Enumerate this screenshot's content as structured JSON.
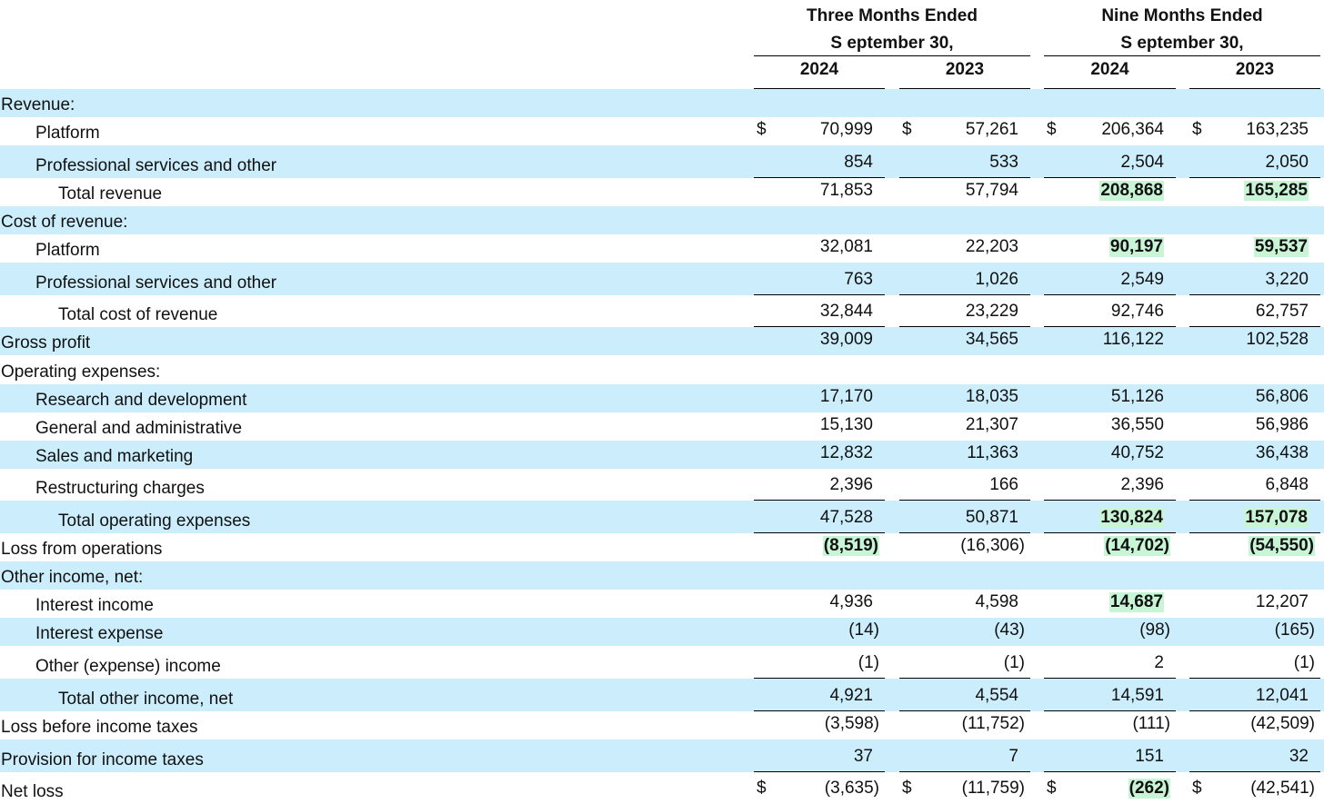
{
  "header": {
    "groups": [
      {
        "title": "Three Months Ended",
        "subtitle": "S eptember 30,"
      },
      {
        "title": "Nine Months Ended",
        "subtitle": "S eptember 30,"
      }
    ],
    "years": [
      "2024",
      "2023",
      "2024",
      "2023"
    ]
  },
  "currency_symbol": "$",
  "rows": [
    {
      "label": "Revenue:",
      "indent": 0,
      "shade": true,
      "values": []
    },
    {
      "label": "Platform",
      "indent": 1,
      "shade": false,
      "dollar": true,
      "values": [
        "70,999",
        "57,261",
        "206,364",
        "163,235"
      ]
    },
    {
      "label": "Professional services and other",
      "indent": 1,
      "shade": true,
      "values": [
        "854",
        "533",
        "2,504",
        "2,050"
      ],
      "rule_below": true
    },
    {
      "label": "Total revenue",
      "indent": 2,
      "shade": false,
      "values": [
        "71,853",
        "57,794",
        "208,868",
        "165,285"
      ],
      "highlight": [
        2,
        3
      ]
    },
    {
      "label": "Cost of revenue:",
      "indent": 0,
      "shade": true,
      "values": []
    },
    {
      "label": "Platform",
      "indent": 1,
      "shade": false,
      "values": [
        "32,081",
        "22,203",
        "90,197",
        "59,537"
      ],
      "highlight": [
        2,
        3
      ]
    },
    {
      "label": "Professional services and other",
      "indent": 1,
      "shade": true,
      "values": [
        "763",
        "1,026",
        "2,549",
        "3,220"
      ],
      "rule_below": true
    },
    {
      "label": "Total cost of revenue",
      "indent": 2,
      "shade": false,
      "values": [
        "32,844",
        "23,229",
        "92,746",
        "62,757"
      ],
      "rule_below": true
    },
    {
      "label": "Gross profit",
      "indent": 0,
      "shade": true,
      "values": [
        "39,009",
        "34,565",
        "116,122",
        "102,528"
      ]
    },
    {
      "label": "Operating expenses:",
      "indent": 0,
      "shade": false,
      "values": []
    },
    {
      "label": "Research and development",
      "indent": 1,
      "shade": true,
      "values": [
        "17,170",
        "18,035",
        "51,126",
        "56,806"
      ]
    },
    {
      "label": "General and administrative",
      "indent": 1,
      "shade": false,
      "values": [
        "15,130",
        "21,307",
        "36,550",
        "56,986"
      ]
    },
    {
      "label": "Sales and marketing",
      "indent": 1,
      "shade": true,
      "values": [
        "12,832",
        "11,363",
        "40,752",
        "36,438"
      ]
    },
    {
      "label": "Restructuring charges",
      "indent": 1,
      "shade": false,
      "values": [
        "2,396",
        "166",
        "2,396",
        "6,848"
      ],
      "rule_below": true
    },
    {
      "label": "Total operating expenses",
      "indent": 2,
      "shade": true,
      "values": [
        "47,528",
        "50,871",
        "130,824",
        "157,078"
      ],
      "highlight": [
        2,
        3
      ],
      "rule_below": true
    },
    {
      "label": "Loss from operations",
      "indent": 0,
      "shade": false,
      "values": [
        "(8,519)",
        "(16,306)",
        "(14,702)",
        "(54,550)"
      ],
      "highlight": [
        0,
        2,
        3
      ]
    },
    {
      "label": "Other income, net:",
      "indent": 0,
      "shade": true,
      "values": []
    },
    {
      "label": "Interest income",
      "indent": 1,
      "shade": false,
      "values": [
        "4,936",
        "4,598",
        "14,687",
        "12,207"
      ],
      "highlight": [
        2
      ]
    },
    {
      "label": "Interest expense",
      "indent": 1,
      "shade": true,
      "values": [
        "(14)",
        "(43)",
        "(98)",
        "(165)"
      ]
    },
    {
      "label": "Other (expense) income",
      "indent": 1,
      "shade": false,
      "values": [
        "(1)",
        "(1)",
        "2",
        "(1)"
      ],
      "rule_below": true
    },
    {
      "label": "Total other income, net",
      "indent": 2,
      "shade": true,
      "values": [
        "4,921",
        "4,554",
        "14,591",
        "12,041"
      ],
      "rule_below": true
    },
    {
      "label": "Loss before income taxes",
      "indent": 0,
      "shade": false,
      "values": [
        "(3,598)",
        "(11,752)",
        "(111)",
        "(42,509)"
      ]
    },
    {
      "label": "Provision for income taxes",
      "indent": 0,
      "shade": true,
      "values": [
        "37",
        "7",
        "151",
        "32"
      ],
      "rule_below": true
    },
    {
      "label": "Net loss",
      "indent": 0,
      "shade": false,
      "dollar": true,
      "values": [
        "(3,635)",
        "(11,759)",
        "(262)",
        "(42,541)"
      ],
      "highlight": [
        2
      ]
    }
  ],
  "colors": {
    "row_shade": "#cceefc",
    "highlight": "#c8f5d6"
  }
}
